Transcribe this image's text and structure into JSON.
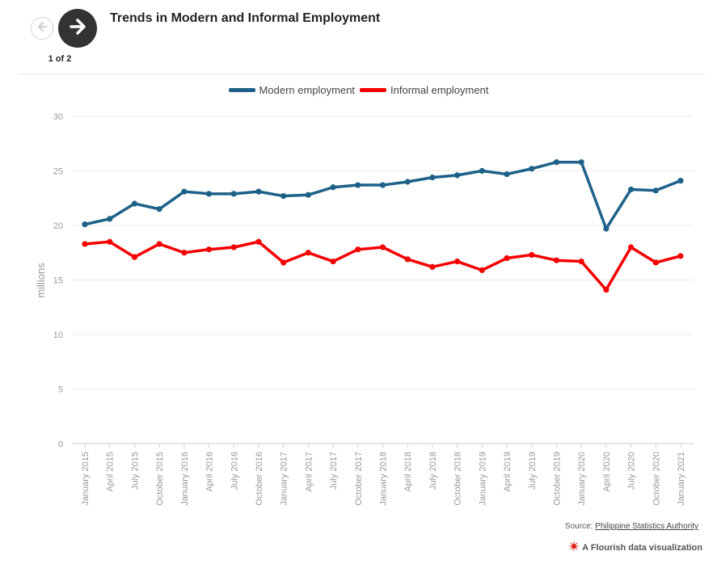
{
  "header": {
    "title": "Trends in Modern and Informal Employment",
    "counter": "1 of 2"
  },
  "colors": {
    "modern": "#1d6189",
    "informal": "#f40102",
    "grid": "#e9e9e9",
    "axis_text": "#999999"
  },
  "footer": {
    "source_prefix": "Source:",
    "source_link": "Philippine Statistics Authority",
    "flourish_text": "A Flourish data visualization"
  },
  "chart_data": {
    "type": "line",
    "ylabel": "millions",
    "xlabel": "",
    "ylim": [
      0,
      30
    ],
    "yticks": [
      0,
      5,
      10,
      15,
      20,
      25,
      30
    ],
    "grid": true,
    "legend_position": "top-center",
    "categories": [
      "January 2015",
      "April 2015",
      "July 2015",
      "October 2015",
      "January 2016",
      "April 2016",
      "July 2016",
      "October 2016",
      "January 2017",
      "April 2017",
      "July 2017",
      "October 2017",
      "January 2018",
      "April 2018",
      "July 2018",
      "October 2018",
      "January 2019",
      "April 2019",
      "July 2019",
      "October 2019",
      "January 2020",
      "April 2020",
      "July 2020",
      "October 2020",
      "January 2021"
    ],
    "series": [
      {
        "name": "Modern employment",
        "color": "#1d6189",
        "values": [
          20.1,
          20.6,
          22.0,
          21.5,
          23.1,
          22.9,
          22.9,
          23.1,
          22.7,
          22.8,
          23.5,
          23.7,
          23.7,
          24.0,
          24.4,
          24.6,
          25.0,
          24.7,
          25.2,
          25.8,
          25.8,
          19.7,
          23.3,
          23.2,
          24.1
        ]
      },
      {
        "name": "Informal employment",
        "color": "#f40102",
        "values": [
          18.3,
          18.5,
          17.1,
          18.3,
          17.5,
          17.8,
          18.0,
          18.5,
          16.6,
          17.5,
          16.7,
          17.8,
          18.0,
          16.9,
          16.2,
          16.7,
          15.9,
          17.0,
          17.3,
          16.8,
          16.7,
          14.1,
          18.0,
          16.6,
          17.2
        ]
      }
    ]
  }
}
